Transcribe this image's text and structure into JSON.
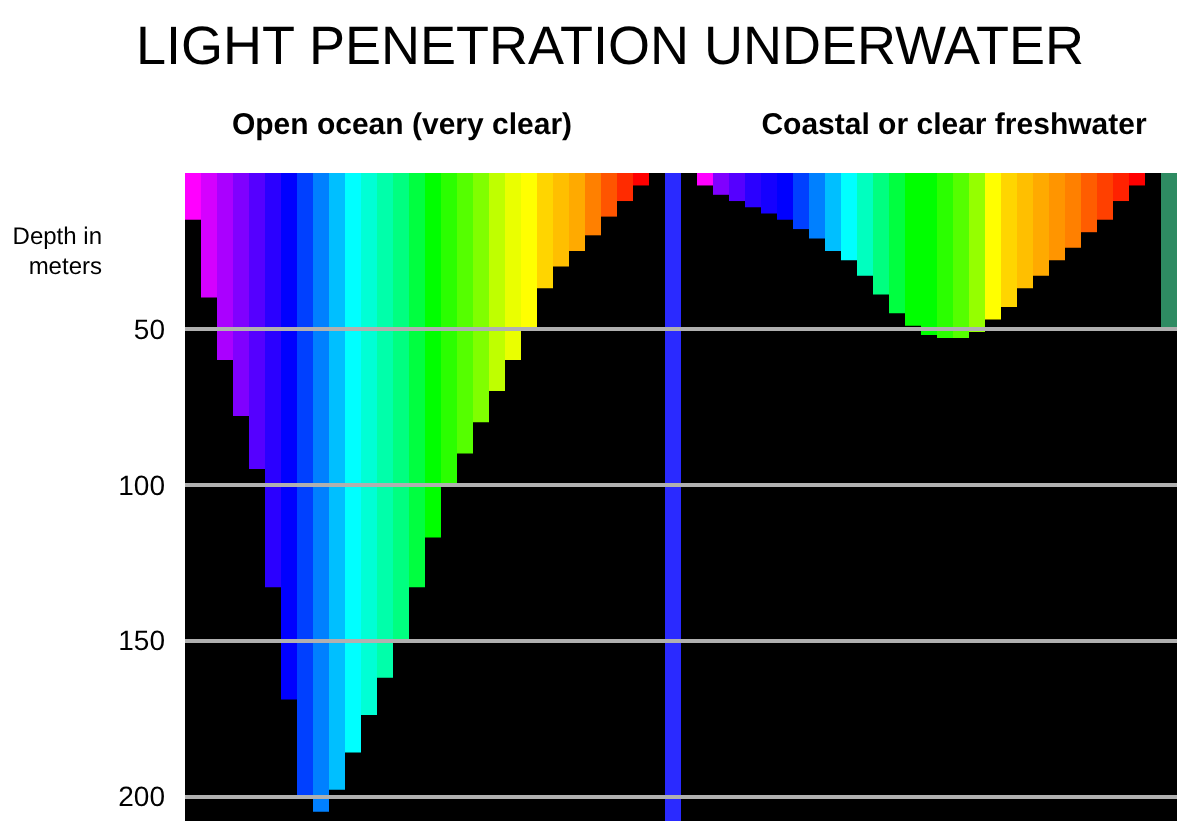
{
  "chart_data": {
    "type": "bar",
    "title": "LIGHT PENETRATION UNDERWATER",
    "ylabel": "Depth in meters",
    "annotations": [
      "Open ocean (very clear)",
      "Coastal or clear freshwater"
    ],
    "categories": [
      null,
      null,
      null,
      null,
      null,
      null,
      null,
      null,
      null,
      null,
      null,
      null,
      null,
      null,
      null,
      null,
      null,
      null,
      null,
      null,
      null,
      null,
      null,
      null,
      null,
      null,
      null,
      null,
      null,
      null,
      null,
      null,
      null,
      null,
      null,
      null,
      null,
      null,
      null,
      null,
      null,
      null,
      null,
      null,
      null,
      null,
      null,
      null,
      null,
      null,
      null,
      null,
      null,
      null,
      null,
      null,
      null,
      null,
      null,
      null,
      null,
      null
    ],
    "values": [
      15,
      40,
      60,
      78,
      95,
      133,
      169,
      200,
      205,
      198,
      186,
      174,
      162,
      150,
      133,
      117,
      100,
      90,
      80,
      70,
      60,
      50,
      37,
      30,
      25,
      20,
      14,
      9,
      4,
      null,
      208,
      null,
      4,
      7,
      9,
      11,
      13,
      15,
      18,
      21,
      25,
      28,
      33,
      39,
      45,
      49,
      52,
      53,
      53,
      51,
      47,
      43,
      37,
      33,
      28,
      24,
      19,
      15,
      9,
      4,
      null,
      50
    ],
    "colors": [
      "#ff00ff",
      "#d500ff",
      "#aa00ff",
      "#8000ff",
      "#5500ff",
      "#2b00ff",
      "#0000ff",
      "#0040ff",
      "#0080ff",
      "#00bfff",
      "#00ffff",
      "#00ffd5",
      "#00ffaa",
      "#00ff80",
      "#00ff40",
      "#00ff00",
      "#2bff00",
      "#55ff00",
      "#80ff00",
      "#bfff00",
      "#eaff00",
      "#ffff00",
      "#ffd500",
      "#ffbf00",
      "#ffaa00",
      "#ff8000",
      "#ff5500",
      "#ff2b00",
      "#ff0000",
      null,
      "#2a2aff",
      null,
      "#ff00ff",
      "#8000ff",
      "#5500ff",
      "#2b00ff",
      "#1500ff",
      "#0000ff",
      "#0040ff",
      "#0080ff",
      "#00bfff",
      "#00ffff",
      "#00ffbf",
      "#00ff80",
      "#00ff40",
      "#00ff00",
      "#00ff00",
      "#2bff00",
      "#55ff00",
      "#95ff00",
      "#ffff00",
      "#ffd500",
      "#ffbf00",
      "#ffaa00",
      "#ff9500",
      "#ff8000",
      "#ff5d00",
      "#ff4000",
      "#ff2200",
      "#ff0000",
      null,
      "#2e8b62"
    ],
    "ylim": [
      208,
      0
    ],
    "yticks": [
      50,
      100,
      150,
      200
    ],
    "grid": "y",
    "tick_labels": "y"
  }
}
